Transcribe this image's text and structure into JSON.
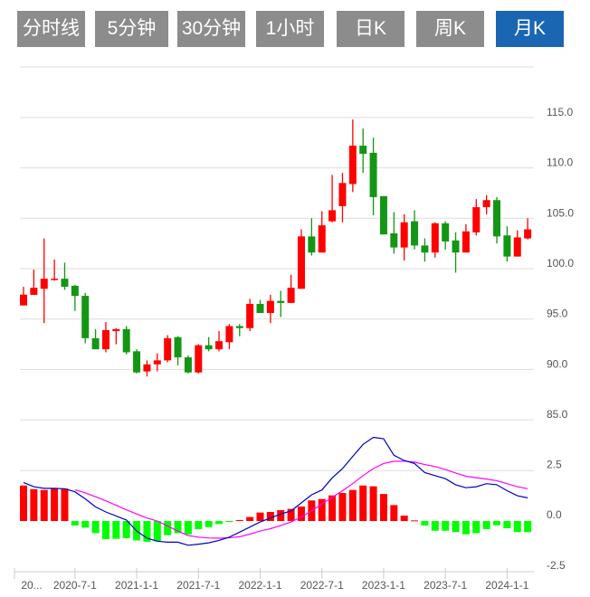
{
  "tabs": [
    {
      "label": "分时线",
      "active": false
    },
    {
      "label": "5分钟",
      "active": false
    },
    {
      "label": "30分钟",
      "active": false
    },
    {
      "label": "1小时",
      "active": false
    },
    {
      "label": "日K",
      "active": false
    },
    {
      "label": "周K",
      "active": false
    },
    {
      "label": "月K",
      "active": true
    }
  ],
  "colors": {
    "up": "#ff0000",
    "down": "#149614",
    "macd_up": "#ff0000",
    "macd_down": "#00ff00",
    "dif": "#0000c8",
    "dea": "#ff00ff",
    "tab": "#8c8c8c",
    "tab_active": "#1a66b3"
  },
  "chart_data": [
    {
      "type": "candlestick",
      "title": "",
      "price_axis_labels": [
        "115.0",
        "110.0",
        "105.0",
        "100.0",
        "95.0",
        "90.0",
        "85.0"
      ],
      "price_ticks": [
        115,
        110,
        105,
        100,
        95,
        90,
        85
      ],
      "ylim": [
        85,
        120
      ],
      "x_labels": [
        "20...",
        "2020-7-1",
        "2021-1-1",
        "2021-7-1",
        "2022-1-1",
        "2022-7-1",
        "2023-1-1",
        "2023-7-1",
        "2024-1-1"
      ],
      "x_label_index": [
        -0.8,
        5,
        11,
        17,
        23,
        29,
        35,
        41,
        47
      ],
      "grid": true,
      "ohlc": [
        [
          96.35,
          98.2,
          96.35,
          97.42
        ],
        [
          97.4,
          99.9,
          97.4,
          98.1
        ],
        [
          98.0,
          103.0,
          94.6,
          99.0
        ],
        [
          98.9,
          100.9,
          98.8,
          99.0
        ],
        [
          99.0,
          100.6,
          97.9,
          98.2
        ],
        [
          98.3,
          98.4,
          95.8,
          97.3
        ],
        [
          97.3,
          97.6,
          92.6,
          93.1
        ],
        [
          93.1,
          94.0,
          92.0,
          92.0
        ],
        [
          92.0,
          94.7,
          91.7,
          93.9
        ],
        [
          93.8,
          94.1,
          92.5,
          94.0
        ],
        [
          94.0,
          94.3,
          91.5,
          91.7
        ],
        [
          91.8,
          92.0,
          89.6,
          89.7
        ],
        [
          89.8,
          90.9,
          89.3,
          90.5
        ],
        [
          90.5,
          91.6,
          89.8,
          90.9
        ],
        [
          90.9,
          93.4,
          90.7,
          93.1
        ],
        [
          93.2,
          93.3,
          90.4,
          91.2
        ],
        [
          91.2,
          91.4,
          89.6,
          89.7
        ],
        [
          89.7,
          92.5,
          89.6,
          92.4
        ],
        [
          92.4,
          93.2,
          91.8,
          92.0
        ],
        [
          92.0,
          93.8,
          91.8,
          92.8
        ],
        [
          92.7,
          94.5,
          92.0,
          94.3
        ],
        [
          94.3,
          94.5,
          93.3,
          94.1
        ],
        [
          94.1,
          97.0,
          93.8,
          96.5
        ],
        [
          96.5,
          96.9,
          95.6,
          95.6
        ],
        [
          95.6,
          97.4,
          94.6,
          96.8
        ],
        [
          96.8,
          97.8,
          95.2,
          96.6
        ],
        [
          96.6,
          99.4,
          96.6,
          98.1
        ],
        [
          98.0,
          103.9,
          98.0,
          103.2
        ],
        [
          103.2,
          105.0,
          101.3,
          101.6
        ],
        [
          101.6,
          105.7,
          101.6,
          104.3
        ],
        [
          104.7,
          109.3,
          104.6,
          105.8
        ],
        [
          106.2,
          109.5,
          104.6,
          108.5
        ],
        [
          108.4,
          114.8,
          107.6,
          112.2
        ],
        [
          112.2,
          113.9,
          109.5,
          111.4
        ],
        [
          111.5,
          113.0,
          105.3,
          107.1
        ],
        [
          107.2,
          107.2,
          103.4,
          103.4
        ],
        [
          103.5,
          105.6,
          101.5,
          102.1
        ],
        [
          102.1,
          105.4,
          100.8,
          104.6
        ],
        [
          104.7,
          105.8,
          101.9,
          102.3
        ],
        [
          102.3,
          103.0,
          100.7,
          101.6
        ],
        [
          101.6,
          104.6,
          101.1,
          104.5
        ],
        [
          104.5,
          104.7,
          101.9,
          102.7
        ],
        [
          102.8,
          103.6,
          99.6,
          101.6
        ],
        [
          101.6,
          104.4,
          101.6,
          103.7
        ],
        [
          103.6,
          106.9,
          103.3,
          106.1
        ],
        [
          106.1,
          107.3,
          105.4,
          106.8
        ],
        [
          106.8,
          107.1,
          102.5,
          103.2
        ],
        [
          103.3,
          104.2,
          100.7,
          101.2
        ],
        [
          101.2,
          103.8,
          101.2,
          103.1
        ],
        [
          103.0,
          105.0,
          102.9,
          103.9
        ]
      ]
    },
    {
      "type": "macd",
      "axis_labels": [
        "2.5",
        "0.0",
        "-2.5"
      ],
      "axis_ticks": [
        2.5,
        0,
        -2.5
      ],
      "ylim": [
        -2.5,
        5.0
      ],
      "macd": [
        1.76,
        1.58,
        1.54,
        1.61,
        1.61,
        -0.22,
        -0.33,
        -0.6,
        -0.9,
        -0.88,
        -0.85,
        -0.96,
        -1.03,
        -1.0,
        -0.7,
        -0.6,
        -0.66,
        -0.4,
        -0.3,
        -0.15,
        -0.05,
        0.05,
        0.2,
        0.42,
        0.45,
        0.54,
        0.6,
        0.72,
        1.02,
        1.09,
        1.27,
        1.39,
        1.54,
        1.76,
        1.72,
        1.34,
        0.79,
        0.27,
        0.03,
        -0.22,
        -0.48,
        -0.48,
        -0.55,
        -0.66,
        -0.6,
        -0.4,
        -0.21,
        -0.36,
        -0.55,
        -0.55
      ],
      "dif": [
        1.91,
        1.7,
        1.62,
        1.62,
        1.6,
        1.45,
        1.1,
        0.7,
        0.45,
        0.25,
        0.05,
        -0.5,
        -0.85,
        -1.0,
        -1.05,
        -1.05,
        -1.2,
        -1.15,
        -1.08,
        -0.96,
        -0.8,
        -0.55,
        -0.3,
        -0.05,
        0.15,
        0.35,
        0.5,
        0.9,
        1.3,
        1.54,
        2.14,
        2.6,
        3.2,
        3.8,
        4.15,
        4.08,
        3.26,
        3.0,
        2.85,
        2.4,
        2.25,
        2.1,
        1.8,
        1.65,
        1.7,
        1.85,
        1.8,
        1.5,
        1.25,
        1.15
      ],
      "dea": [
        null,
        null,
        null,
        null,
        null,
        1.55,
        1.4,
        1.2,
        1.0,
        0.78,
        0.55,
        0.35,
        0.15,
        0.0,
        -0.25,
        -0.5,
        -0.72,
        -0.8,
        -0.84,
        -0.85,
        -0.83,
        -0.78,
        -0.65,
        -0.5,
        -0.38,
        -0.22,
        -0.05,
        0.2,
        0.5,
        0.85,
        1.17,
        1.5,
        1.85,
        2.25,
        2.6,
        2.85,
        2.96,
        2.97,
        2.92,
        2.8,
        2.7,
        2.55,
        2.38,
        2.22,
        2.15,
        2.08,
        2.0,
        1.85,
        1.7,
        1.6
      ]
    }
  ]
}
